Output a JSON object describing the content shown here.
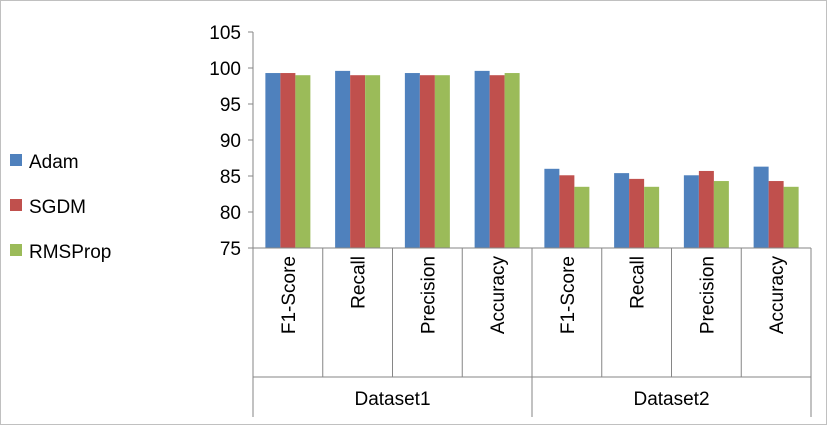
{
  "chart_data": {
    "type": "bar",
    "title": "",
    "xlabel": "",
    "ylabel": "",
    "ylim": [
      75,
      105
    ],
    "yticks": [
      75,
      80,
      85,
      90,
      95,
      100,
      105
    ],
    "grid": false,
    "legend_position": "left",
    "groups": [
      {
        "label": "Dataset1",
        "categories": [
          "F1-Score",
          "Recall",
          "Precision",
          "Accuracy"
        ]
      },
      {
        "label": "Dataset2",
        "categories": [
          "F1-Score",
          "Recall",
          "Precision",
          "Accuracy"
        ]
      }
    ],
    "categories": [
      "F1-Score",
      "Recall",
      "Precision",
      "Accuracy",
      "F1-Score",
      "Recall",
      "Precision",
      "Accuracy"
    ],
    "series": [
      {
        "name": "Adam",
        "color": "#4F81BD",
        "values": [
          99.3,
          99.6,
          99.3,
          99.6,
          86.0,
          85.4,
          85.1,
          86.3
        ]
      },
      {
        "name": "SGDM",
        "color": "#C0504D",
        "values": [
          99.3,
          99.0,
          99.0,
          99.0,
          85.1,
          84.6,
          85.7,
          84.3
        ]
      },
      {
        "name": "RMSProp",
        "color": "#9BBB59",
        "values": [
          99.0,
          99.0,
          99.0,
          99.3,
          83.5,
          83.5,
          84.3,
          83.5
        ]
      }
    ]
  }
}
